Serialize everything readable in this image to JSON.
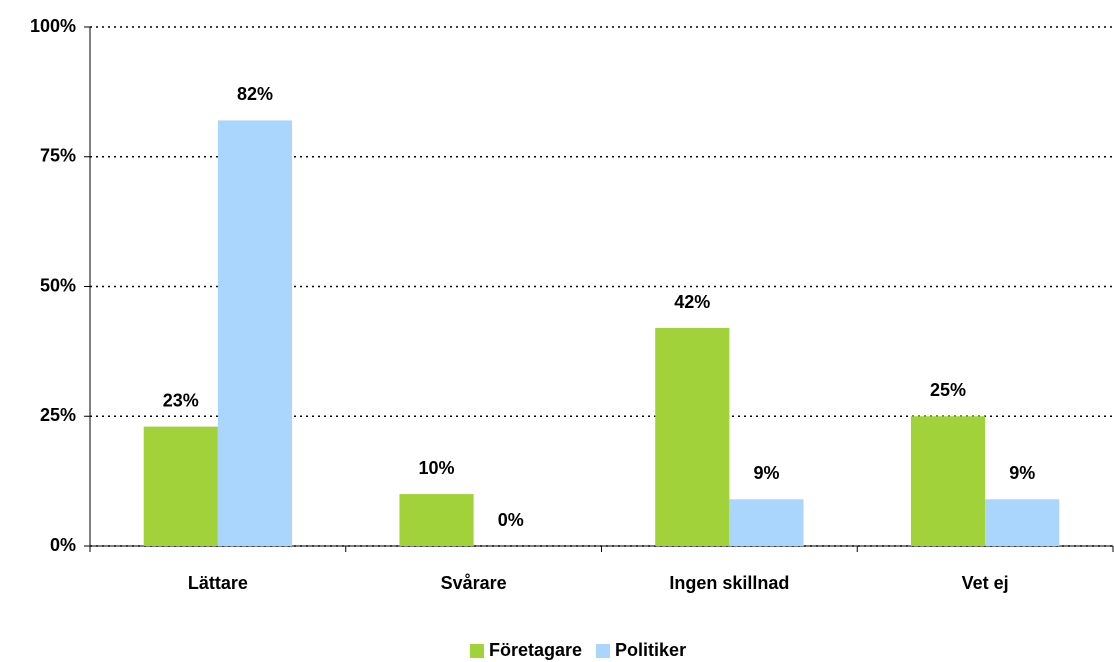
{
  "chart_data": {
    "type": "bar",
    "categories": [
      "Lättare",
      "Svårare",
      "Ingen skillnad",
      "Vet ej"
    ],
    "series": [
      {
        "name": "Företagare",
        "color": "#a2d23a",
        "values": [
          23,
          10,
          42,
          25
        ],
        "value_labels": [
          "23%",
          "10%",
          "42%",
          "25%"
        ]
      },
      {
        "name": "Politiker",
        "color": "#aad5fd",
        "values": [
          82,
          0,
          9,
          9
        ],
        "value_labels": [
          "82%",
          "0%",
          "9%",
          "9%"
        ]
      }
    ],
    "ylim": [
      0,
      100
    ],
    "yticks": [
      {
        "value": 0,
        "label": "0%"
      },
      {
        "value": 25,
        "label": "25%"
      },
      {
        "value": 50,
        "label": "50%"
      },
      {
        "value": 75,
        "label": "75%"
      },
      {
        "value": 100,
        "label": "100%"
      }
    ],
    "grid": true,
    "legend": "bottom"
  }
}
